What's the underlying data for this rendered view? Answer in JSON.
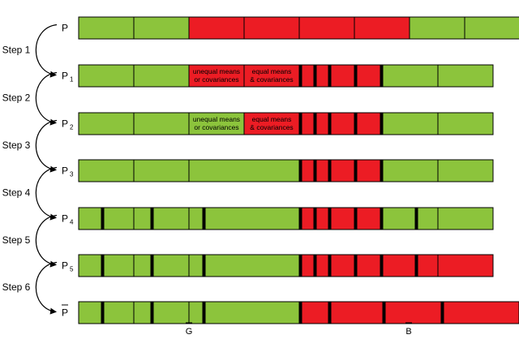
{
  "colors": {
    "good": "#8cc43c",
    "bad": "#ec1c24",
    "outline": "#000000",
    "text": "#000000"
  },
  "steps": [
    {
      "label": "Step 1"
    },
    {
      "label": "Step 2"
    },
    {
      "label": "Step 3"
    },
    {
      "label": "Step 4"
    },
    {
      "label": "Step 5"
    },
    {
      "label": "Step 6"
    }
  ],
  "rows": [
    {
      "label": "P",
      "sub": "",
      "hat": false,
      "segments": [
        {
          "color": "good",
          "w": 68
        },
        {
          "color": "good",
          "w": 68
        },
        {
          "color": "bad",
          "w": 68
        },
        {
          "color": "bad",
          "w": 68
        },
        {
          "color": "bad",
          "w": 68
        },
        {
          "color": "bad",
          "w": 68
        },
        {
          "color": "good",
          "w": 68
        },
        {
          "color": "good",
          "w": 68
        }
      ]
    },
    {
      "label": "P",
      "sub": "1",
      "hat": false,
      "segments": [
        {
          "color": "good",
          "w": 68
        },
        {
          "color": "good",
          "w": 68
        },
        {
          "color": "bad",
          "w": 68,
          "text": [
            "unequal means",
            "or covariances"
          ]
        },
        {
          "color": "bad",
          "w": 68,
          "text": [
            "equal means",
            "& covariances"
          ]
        },
        {
          "color": "bad",
          "w": 3
        },
        {
          "color": "bad",
          "w": 15
        },
        {
          "color": "bad",
          "w": 3
        },
        {
          "color": "bad",
          "w": 15
        },
        {
          "color": "bad",
          "w": 3
        },
        {
          "color": "bad",
          "w": 29
        },
        {
          "color": "bad",
          "w": 3
        },
        {
          "color": "bad",
          "w": 29
        },
        {
          "color": "bad",
          "w": 3
        },
        {
          "color": "good",
          "w": 68
        },
        {
          "color": "good",
          "w": 68
        }
      ]
    },
    {
      "label": "P",
      "sub": "2",
      "hat": false,
      "segments": [
        {
          "color": "good",
          "w": 68
        },
        {
          "color": "good",
          "w": 68
        },
        {
          "color": "good",
          "w": 68,
          "text": [
            "unequal means",
            "or covariances"
          ]
        },
        {
          "color": "bad",
          "w": 68,
          "text": [
            "equal means",
            "& covariances"
          ]
        },
        {
          "color": "bad",
          "w": 3
        },
        {
          "color": "bad",
          "w": 15
        },
        {
          "color": "bad",
          "w": 3
        },
        {
          "color": "bad",
          "w": 15
        },
        {
          "color": "bad",
          "w": 3
        },
        {
          "color": "bad",
          "w": 29
        },
        {
          "color": "bad",
          "w": 3
        },
        {
          "color": "bad",
          "w": 29
        },
        {
          "color": "bad",
          "w": 3
        },
        {
          "color": "good",
          "w": 68
        },
        {
          "color": "good",
          "w": 68
        }
      ]
    },
    {
      "label": "P",
      "sub": "3",
      "hat": false,
      "segments": [
        {
          "color": "good",
          "w": 68
        },
        {
          "color": "good",
          "w": 68
        },
        {
          "color": "good",
          "w": 136
        },
        {
          "color": "bad",
          "w": 3
        },
        {
          "color": "bad",
          "w": 15
        },
        {
          "color": "bad",
          "w": 3
        },
        {
          "color": "bad",
          "w": 15
        },
        {
          "color": "bad",
          "w": 3
        },
        {
          "color": "bad",
          "w": 29
        },
        {
          "color": "bad",
          "w": 3
        },
        {
          "color": "bad",
          "w": 29
        },
        {
          "color": "bad",
          "w": 3
        },
        {
          "color": "good",
          "w": 68
        },
        {
          "color": "good",
          "w": 68
        }
      ]
    },
    {
      "label": "P",
      "sub": "4",
      "hat": false,
      "segments": [
        {
          "color": "good",
          "w": 28
        },
        {
          "color": "good",
          "w": 3
        },
        {
          "color": "good",
          "w": 37
        },
        {
          "color": "good",
          "w": 21
        },
        {
          "color": "good",
          "w": 3
        },
        {
          "color": "good",
          "w": 44
        },
        {
          "color": "good",
          "w": 17
        },
        {
          "color": "good",
          "w": 3
        },
        {
          "color": "good",
          "w": 116
        },
        {
          "color": "bad",
          "w": 3
        },
        {
          "color": "bad",
          "w": 15
        },
        {
          "color": "bad",
          "w": 3
        },
        {
          "color": "bad",
          "w": 15
        },
        {
          "color": "bad",
          "w": 3
        },
        {
          "color": "bad",
          "w": 29
        },
        {
          "color": "bad",
          "w": 3
        },
        {
          "color": "bad",
          "w": 29
        },
        {
          "color": "bad",
          "w": 3
        },
        {
          "color": "good",
          "w": 40
        },
        {
          "color": "good",
          "w": 3
        },
        {
          "color": "good",
          "w": 25
        },
        {
          "color": "good",
          "w": 68
        }
      ]
    },
    {
      "label": "P",
      "sub": "5",
      "hat": false,
      "segments": [
        {
          "color": "good",
          "w": 28
        },
        {
          "color": "good",
          "w": 3
        },
        {
          "color": "good",
          "w": 37
        },
        {
          "color": "good",
          "w": 21
        },
        {
          "color": "good",
          "w": 3
        },
        {
          "color": "good",
          "w": 44
        },
        {
          "color": "good",
          "w": 17
        },
        {
          "color": "good",
          "w": 3
        },
        {
          "color": "good",
          "w": 116
        },
        {
          "color": "bad",
          "w": 3
        },
        {
          "color": "bad",
          "w": 15
        },
        {
          "color": "bad",
          "w": 3
        },
        {
          "color": "bad",
          "w": 15
        },
        {
          "color": "bad",
          "w": 3
        },
        {
          "color": "bad",
          "w": 29
        },
        {
          "color": "bad",
          "w": 3
        },
        {
          "color": "bad",
          "w": 29
        },
        {
          "color": "bad",
          "w": 3
        },
        {
          "color": "bad",
          "w": 40
        },
        {
          "color": "bad",
          "w": 3
        },
        {
          "color": "bad",
          "w": 25
        },
        {
          "color": "bad",
          "w": 68
        }
      ]
    },
    {
      "label": "P",
      "sub": "",
      "hat": true,
      "segments": [
        {
          "color": "good",
          "w": 28
        },
        {
          "color": "good",
          "w": 3
        },
        {
          "color": "good",
          "w": 37
        },
        {
          "color": "good",
          "w": 21
        },
        {
          "color": "good",
          "w": 3
        },
        {
          "color": "good",
          "w": 44
        },
        {
          "color": "good",
          "w": 17
        },
        {
          "color": "good",
          "w": 3
        },
        {
          "color": "good",
          "w": 116
        },
        {
          "color": "bad",
          "w": 3
        },
        {
          "color": "bad",
          "w": 33
        },
        {
          "color": "bad",
          "w": 3
        },
        {
          "color": "bad",
          "w": 64
        },
        {
          "color": "bad",
          "w": 3
        },
        {
          "color": "bad",
          "w": 69
        },
        {
          "color": "bad",
          "w": 3
        },
        {
          "color": "bad",
          "w": 93
        }
      ]
    }
  ],
  "axis": {
    "left_label": "G",
    "right_label": "B"
  }
}
